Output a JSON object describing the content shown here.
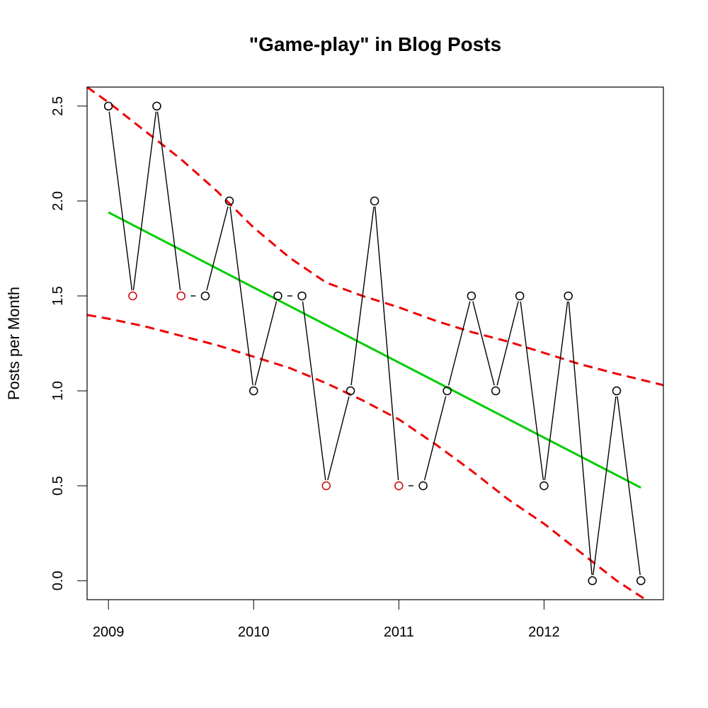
{
  "chart_data": {
    "type": "line",
    "title": "\"Game-play\" in Blog Posts",
    "xlabel": "",
    "ylabel": "Posts per Month",
    "xlim": [
      2008.853,
      2012.822
    ],
    "ylim": [
      -0.1,
      2.6
    ],
    "x_ticks": [
      2009,
      2010,
      2011,
      2012
    ],
    "y_ticks": [
      0.0,
      0.5,
      1.0,
      1.5,
      2.0,
      2.5
    ],
    "y_tick_labels": [
      "0.0",
      "0.5",
      "1.0",
      "1.5",
      "2.0",
      "2.5"
    ],
    "grid": false,
    "legend": "none",
    "series": [
      {
        "kind": "observed",
        "color": "#000000",
        "points": [
          {
            "x": 2009.0,
            "y": 2.5,
            "marker_color": "#000000"
          },
          {
            "x": 2009.167,
            "y": 1.5,
            "marker_color": "#cc0000"
          },
          {
            "x": 2009.333,
            "y": 2.5,
            "marker_color": "#000000"
          },
          {
            "x": 2009.5,
            "y": 1.5,
            "marker_color": "#cc0000"
          },
          {
            "x": 2009.667,
            "y": 1.5,
            "marker_color": "#000000"
          },
          {
            "x": 2009.833,
            "y": 2.0,
            "marker_color": "#000000"
          },
          {
            "x": 2010.0,
            "y": 1.0,
            "marker_color": "#000000"
          },
          {
            "x": 2010.167,
            "y": 1.5,
            "marker_color": "#000000"
          },
          {
            "x": 2010.333,
            "y": 1.5,
            "marker_color": "#000000"
          },
          {
            "x": 2010.5,
            "y": 0.5,
            "marker_color": "#cc0000"
          },
          {
            "x": 2010.667,
            "y": 1.0,
            "marker_color": "#000000"
          },
          {
            "x": 2010.833,
            "y": 2.0,
            "marker_color": "#000000"
          },
          {
            "x": 2011.0,
            "y": 0.5,
            "marker_color": "#cc0000"
          },
          {
            "x": 2011.167,
            "y": 0.5,
            "marker_color": "#000000"
          },
          {
            "x": 2011.333,
            "y": 1.0,
            "marker_color": "#000000"
          },
          {
            "x": 2011.5,
            "y": 1.5,
            "marker_color": "#000000"
          },
          {
            "x": 2011.667,
            "y": 1.0,
            "marker_color": "#000000"
          },
          {
            "x": 2011.833,
            "y": 1.5,
            "marker_color": "#000000"
          },
          {
            "x": 2012.0,
            "y": 0.5,
            "marker_color": "#000000"
          },
          {
            "x": 2012.167,
            "y": 1.5,
            "marker_color": "#000000"
          },
          {
            "x": 2012.333,
            "y": 0.0,
            "marker_color": "#000000"
          },
          {
            "x": 2012.5,
            "y": 1.0,
            "marker_color": "#000000"
          },
          {
            "x": 2012.667,
            "y": 0.0,
            "marker_color": "#000000"
          }
        ],
        "dashed_gaps": [
          [
            3,
            4
          ],
          [
            7,
            8
          ],
          [
            12,
            13
          ]
        ]
      },
      {
        "kind": "trend",
        "color": "#00cc00",
        "points": [
          {
            "x": 2009.0,
            "y": 1.94
          },
          {
            "x": 2012.667,
            "y": 0.49
          }
        ]
      },
      {
        "kind": "upper-bound",
        "color": "#ee0000",
        "dashed": true,
        "points": [
          {
            "x": 2008.853,
            "y": 2.6
          },
          {
            "x": 2009.0,
            "y": 2.52
          },
          {
            "x": 2009.25,
            "y": 2.37
          },
          {
            "x": 2009.5,
            "y": 2.22
          },
          {
            "x": 2009.75,
            "y": 2.05
          },
          {
            "x": 2010.0,
            "y": 1.86
          },
          {
            "x": 2010.25,
            "y": 1.7
          },
          {
            "x": 2010.5,
            "y": 1.57
          },
          {
            "x": 2010.75,
            "y": 1.5
          },
          {
            "x": 2011.0,
            "y": 1.44
          },
          {
            "x": 2011.25,
            "y": 1.37
          },
          {
            "x": 2011.5,
            "y": 1.31
          },
          {
            "x": 2011.75,
            "y": 1.26
          },
          {
            "x": 2012.0,
            "y": 1.2
          },
          {
            "x": 2012.25,
            "y": 1.14
          },
          {
            "x": 2012.5,
            "y": 1.09
          },
          {
            "x": 2012.822,
            "y": 1.03
          }
        ]
      },
      {
        "kind": "lower-bound",
        "color": "#ee0000",
        "dashed": true,
        "points": [
          {
            "x": 2008.853,
            "y": 1.4
          },
          {
            "x": 2009.0,
            "y": 1.38
          },
          {
            "x": 2009.25,
            "y": 1.34
          },
          {
            "x": 2009.5,
            "y": 1.29
          },
          {
            "x": 2009.75,
            "y": 1.24
          },
          {
            "x": 2010.0,
            "y": 1.18
          },
          {
            "x": 2010.25,
            "y": 1.12
          },
          {
            "x": 2010.5,
            "y": 1.04
          },
          {
            "x": 2010.75,
            "y": 0.95
          },
          {
            "x": 2011.0,
            "y": 0.85
          },
          {
            "x": 2011.25,
            "y": 0.72
          },
          {
            "x": 2011.5,
            "y": 0.58
          },
          {
            "x": 2011.75,
            "y": 0.43
          },
          {
            "x": 2012.0,
            "y": 0.3
          },
          {
            "x": 2012.25,
            "y": 0.15
          },
          {
            "x": 2012.5,
            "y": 0.0
          },
          {
            "x": 2012.7,
            "y": -0.1
          }
        ]
      }
    ]
  }
}
